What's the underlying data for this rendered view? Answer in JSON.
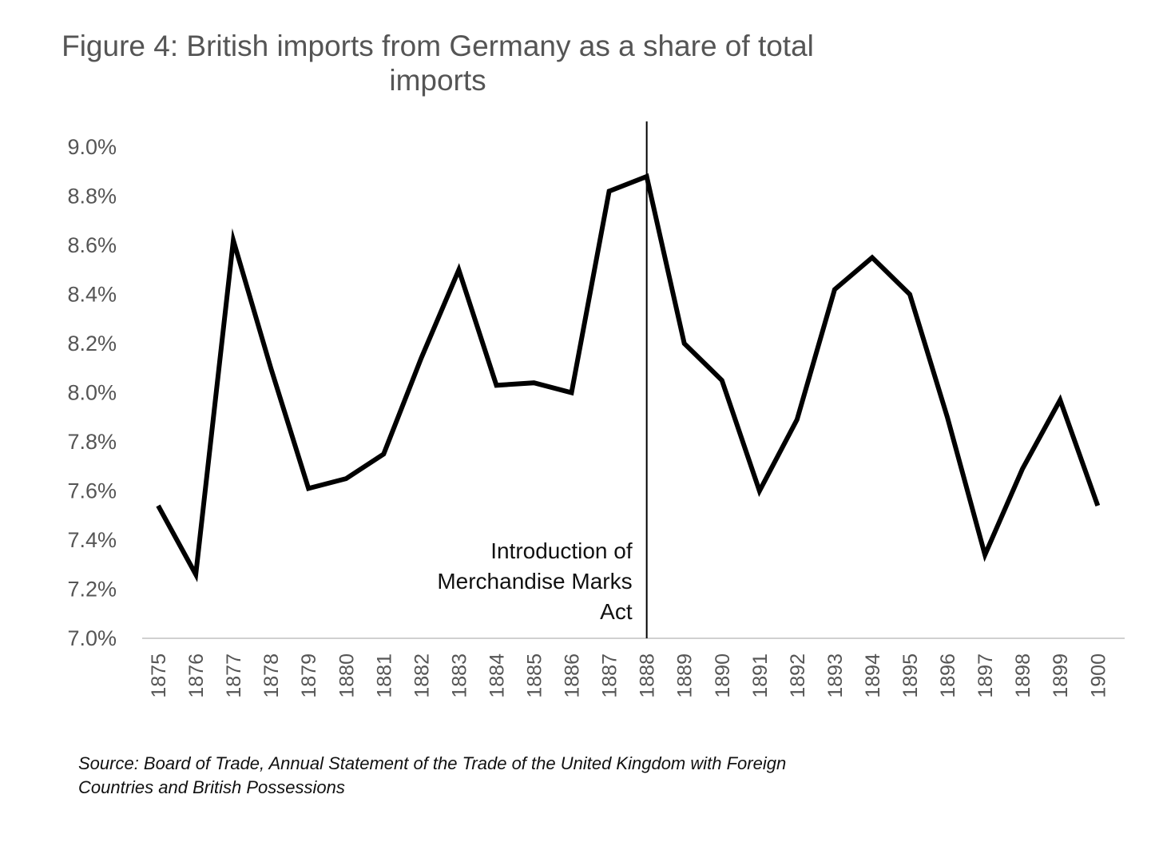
{
  "chart_data": {
    "type": "line",
    "title_lines": [
      "Figure 4: British imports from Germany as a share of total",
      "imports"
    ],
    "xlabel": "",
    "ylabel": "",
    "ylim": [
      7.0,
      9.0
    ],
    "y_ticks": [
      "9.0%",
      "8.8%",
      "8.6%",
      "8.4%",
      "8.2%",
      "8.0%",
      "7.8%",
      "7.6%",
      "7.4%",
      "7.2%",
      "7.0%"
    ],
    "y_tick_values": [
      9.0,
      8.8,
      8.6,
      8.4,
      8.2,
      8.0,
      7.8,
      7.6,
      7.4,
      7.2,
      7.0
    ],
    "grid": false,
    "legend": "none",
    "x": [
      "1875",
      "1876",
      "1877",
      "1878",
      "1879",
      "1880",
      "1881",
      "1882",
      "1883",
      "1884",
      "1885",
      "1886",
      "1887",
      "1888",
      "1889",
      "1890",
      "1891",
      "1892",
      "1893",
      "1894",
      "1895",
      "1896",
      "1897",
      "1898",
      "1899",
      "1900"
    ],
    "series": [
      {
        "values": [
          7.54,
          7.26,
          8.62,
          8.1,
          7.61,
          7.65,
          7.75,
          8.14,
          8.5,
          8.03,
          8.04,
          8.0,
          8.82,
          8.88,
          8.2,
          8.05,
          7.6,
          7.89,
          8.42,
          8.55,
          8.4,
          7.9,
          7.34,
          7.69,
          7.97,
          7.54
        ]
      }
    ],
    "line_color": "#000000",
    "annotations": [
      {
        "x": "1888",
        "type": "vertical-line",
        "lines": [
          "Introduction of",
          "Merchandise Marks",
          "Act"
        ]
      }
    ],
    "source_lines": [
      "Source: Board of Trade, Annual Statement of the Trade of the United Kingdom with Foreign",
      "Countries and British Possessions"
    ]
  }
}
